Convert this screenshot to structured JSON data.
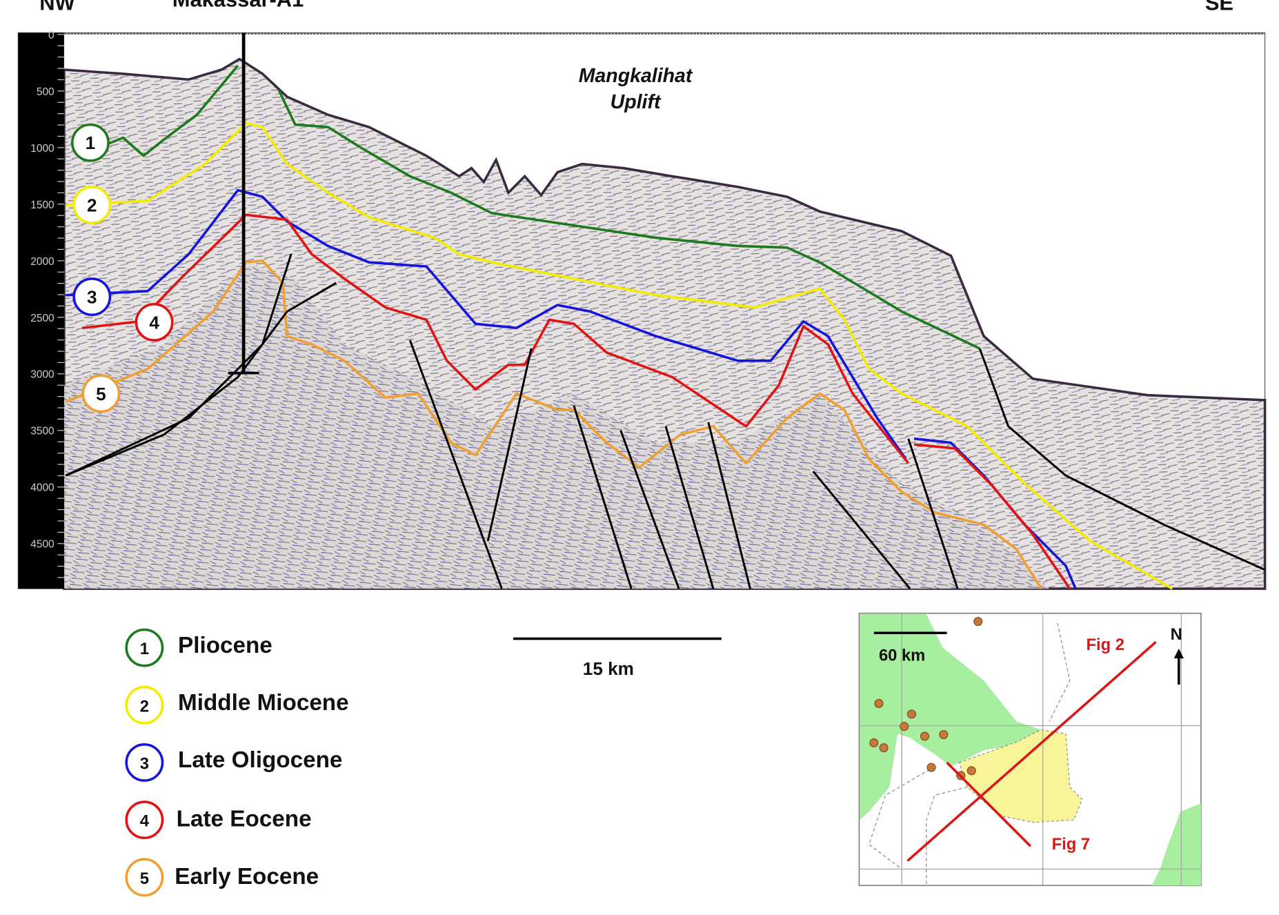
{
  "header": {
    "left_direction": "NW",
    "well_name": "Makassar-A1",
    "right_direction": "SE"
  },
  "section": {
    "annotation_line1": "Mangkalihat",
    "annotation_line2": "Uplift",
    "depth_ticks": [
      "0",
      "500",
      "1000",
      "1500",
      "2000",
      "2500",
      "3000",
      "3500",
      "4000",
      "4500"
    ]
  },
  "horizons": [
    {
      "number": "1",
      "label": "Pliocene",
      "color": "#1e7a1e"
    },
    {
      "number": "2",
      "label": "Middle Miocene",
      "color": "#f2ec00"
    },
    {
      "number": "3",
      "label": "Late Oligocene",
      "color": "#1414dc"
    },
    {
      "number": "4",
      "label": "Late Eocene",
      "color": "#e01414"
    },
    {
      "number": "5",
      "label": "Early Eocene",
      "color": "#f0a030"
    }
  ],
  "scale_bar": {
    "label": "15 km"
  },
  "inset_map": {
    "scale_label": "60 km",
    "north_label": "N",
    "line_a_label": "Fig 2",
    "line_b_label": "Fig 7",
    "land_color": "#a8eea0",
    "area_color": "#f8f49a",
    "line_color": "#d81818"
  }
}
